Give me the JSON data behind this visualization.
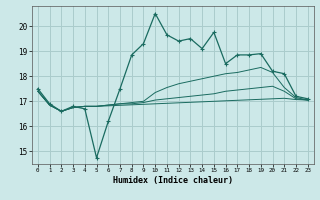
{
  "xlabel": "Humidex (Indice chaleur)",
  "bg_color": "#cce8e8",
  "grid_color": "#aacccc",
  "line_color": "#1a6b60",
  "xlim": [
    -0.5,
    23.5
  ],
  "ylim": [
    14.5,
    20.8
  ],
  "yticks": [
    15,
    16,
    17,
    18,
    19,
    20
  ],
  "xticks": [
    0,
    1,
    2,
    3,
    4,
    5,
    6,
    7,
    8,
    9,
    10,
    11,
    12,
    13,
    14,
    15,
    16,
    17,
    18,
    19,
    20,
    21,
    22,
    23
  ],
  "series1_x": [
    0,
    1,
    2,
    3,
    4,
    5,
    6,
    7,
    8,
    9,
    10,
    11,
    12,
    13,
    14,
    15,
    16,
    17,
    18,
    19,
    20,
    21,
    22,
    23
  ],
  "series1_y": [
    17.5,
    16.9,
    16.6,
    16.8,
    16.7,
    14.75,
    16.2,
    17.5,
    18.85,
    19.3,
    20.5,
    19.65,
    19.4,
    19.5,
    19.1,
    19.75,
    18.5,
    18.85,
    18.85,
    18.9,
    18.2,
    18.1,
    17.2,
    17.1
  ],
  "series2_x": [
    0,
    1,
    2,
    3,
    4,
    5,
    6,
    7,
    8,
    9,
    10,
    11,
    12,
    13,
    14,
    15,
    16,
    17,
    18,
    19,
    20,
    21,
    22,
    23
  ],
  "series2_y": [
    17.4,
    16.85,
    16.6,
    16.75,
    16.8,
    16.8,
    16.85,
    16.9,
    16.9,
    16.95,
    17.05,
    17.1,
    17.15,
    17.2,
    17.25,
    17.3,
    17.4,
    17.45,
    17.5,
    17.55,
    17.6,
    17.4,
    17.1,
    17.05
  ],
  "series3_x": [
    0,
    1,
    2,
    3,
    4,
    5,
    6,
    7,
    8,
    9,
    10,
    11,
    12,
    13,
    14,
    15,
    16,
    17,
    18,
    19,
    20,
    21,
    22,
    23
  ],
  "series3_y": [
    17.4,
    16.85,
    16.6,
    16.75,
    16.8,
    16.8,
    16.85,
    16.9,
    16.95,
    17.0,
    17.35,
    17.55,
    17.7,
    17.8,
    17.9,
    18.0,
    18.1,
    18.15,
    18.25,
    18.35,
    18.15,
    17.55,
    17.15,
    17.05
  ],
  "series4_x": [
    0,
    1,
    2,
    3,
    4,
    5,
    6,
    7,
    8,
    9,
    10,
    11,
    12,
    13,
    14,
    15,
    16,
    17,
    18,
    19,
    20,
    21,
    22,
    23
  ],
  "series4_y": [
    17.4,
    16.85,
    16.6,
    16.75,
    16.8,
    16.8,
    16.82,
    16.84,
    16.86,
    16.88,
    16.9,
    16.92,
    16.94,
    16.96,
    16.98,
    17.0,
    17.02,
    17.04,
    17.06,
    17.08,
    17.1,
    17.12,
    17.07,
    17.05
  ]
}
